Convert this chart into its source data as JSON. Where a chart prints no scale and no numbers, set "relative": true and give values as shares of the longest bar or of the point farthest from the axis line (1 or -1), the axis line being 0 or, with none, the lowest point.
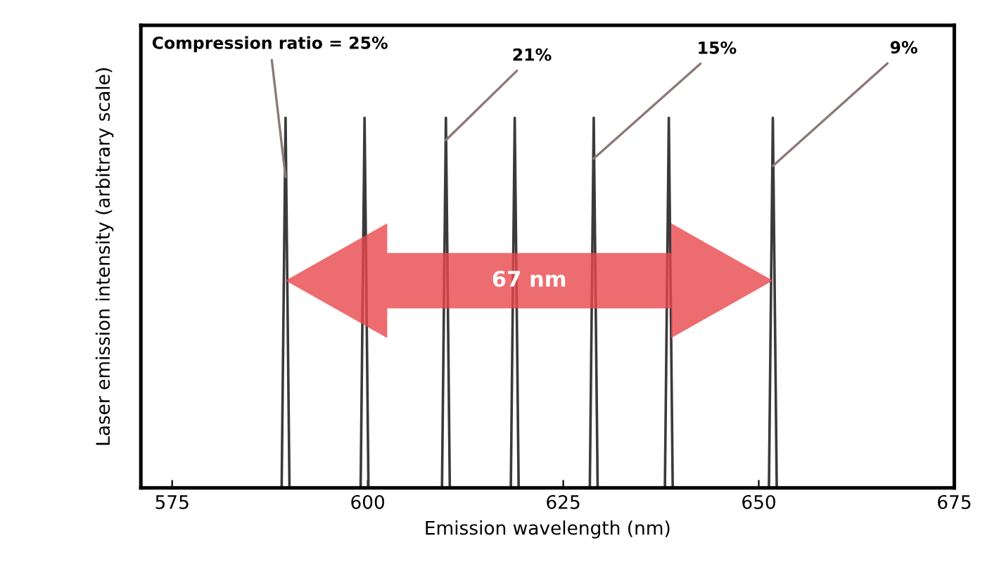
{
  "chart_data": {
    "type": "line",
    "relative": true,
    "xlabel": "Emission wavelength (nm)",
    "ylabel": "Laser emission intensity (arbitrary scale)",
    "xlim": [
      571,
      675
    ],
    "xticks": [
      575,
      600,
      625,
      650,
      675
    ],
    "tick_labels": "x",
    "grid": false,
    "legend": false,
    "marker": "none",
    "line_style": "solid",
    "series": [
      {
        "color": "#3a3a3a",
        "x": [
          571,
          589.0,
          589.5,
          590.0,
          599.1,
          599.6,
          600.1,
          609.5,
          610.0,
          610.5,
          618.3,
          618.8,
          619.3,
          628.4,
          628.9,
          629.4,
          638.0,
          638.5,
          639.0,
          651.3,
          651.8,
          652.3,
          675
        ],
        "values": [
          0,
          0,
          1,
          0,
          0,
          1,
          0,
          0,
          1,
          0,
          0,
          1,
          0,
          0,
          1,
          0,
          0,
          1,
          0,
          0,
          1,
          0,
          0
        ]
      }
    ],
    "annotations": [
      {
        "text": "Compression ratio = 25%",
        "x": 589.5,
        "y": 0.84
      },
      {
        "text": "21%",
        "x": 610.0,
        "y": 0.94
      },
      {
        "text": "15%",
        "x": 628.9,
        "y": 0.89
      },
      {
        "text": "9%",
        "x": 651.8,
        "y": 0.87
      },
      "67 nm"
    ]
  }
}
